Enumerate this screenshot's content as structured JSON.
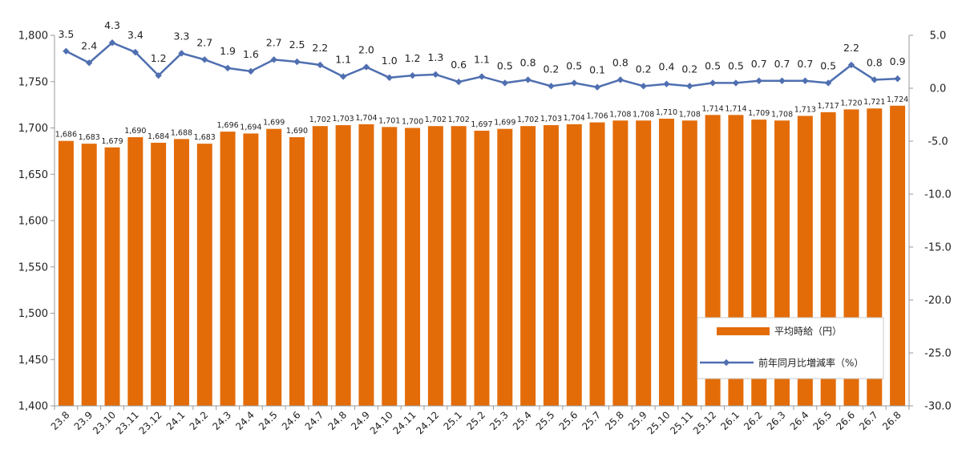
{
  "chart_data": {
    "type": "bar",
    "categories": [
      "23.8",
      "23.9",
      "23.10",
      "23.11",
      "23.12",
      "24.1",
      "24.2",
      "24.3",
      "24.4",
      "24.5",
      "24.6",
      "24.7",
      "24.8",
      "24.9",
      "24.10",
      "24.11",
      "24.12",
      "25.1",
      "25.2",
      "25.3",
      "25.4",
      "25.5",
      "25.6",
      "25.7",
      "25.8",
      "25.9",
      "25.10",
      "25.11",
      "25.12",
      "26.1",
      "26.2",
      "26.3",
      "26.4",
      "26.5",
      "26.6",
      "26.7",
      "26.8"
    ],
    "series": [
      {
        "name": "平均時給（円）",
        "type": "bar",
        "axis": "left",
        "color": "#E36C09",
        "values": [
          1686,
          1683,
          1679,
          1690,
          1684,
          1688,
          1683,
          1696,
          1694,
          1699,
          1690,
          1702,
          1703,
          1704,
          1701,
          1700,
          1702,
          1702,
          1697,
          1699,
          1702,
          1703,
          1704,
          1706,
          1708,
          1708,
          1710,
          1708,
          1714,
          1714,
          1709,
          1708,
          1713,
          1717,
          1720,
          1721,
          1724
        ],
        "labels": [
          "1,686",
          "1,683",
          "1,679",
          "1,690",
          "1,684",
          "1,688",
          "1,683",
          "1,696",
          "1,694",
          "1,699",
          "1,690",
          "1,702",
          "1,703",
          "1,704",
          "1,701",
          "1,700",
          "1,702",
          "1,702",
          "1,697",
          "1,699",
          "1,702",
          "1,703",
          "1,704",
          "1,706",
          "1,708",
          "1,708",
          "1,710",
          "1,708",
          "1,714",
          "1,714",
          "1,709",
          "1,708",
          "1,713",
          "1,717",
          "1,720",
          "1,721",
          "1,724"
        ]
      },
      {
        "name": "前年同月比増減率（%）",
        "type": "line",
        "axis": "right",
        "color": "#4F6FB0",
        "values": [
          3.5,
          2.4,
          4.3,
          3.4,
          1.2,
          3.3,
          2.7,
          1.9,
          1.6,
          2.7,
          2.5,
          2.2,
          1.1,
          2.0,
          1.0,
          1.2,
          1.3,
          0.6,
          1.1,
          0.5,
          0.8,
          0.2,
          0.5,
          0.1,
          0.8,
          0.2,
          0.4,
          0.2,
          0.5,
          0.5,
          0.7,
          0.7,
          0.7,
          0.5,
          2.2,
          0.8,
          0.9
        ],
        "labels": [
          "3.5",
          "2.4",
          "4.3",
          "3.4",
          "1.2",
          "3.3",
          "2.7",
          "1.9",
          "1.6",
          "2.7",
          "2.5",
          "2.2",
          "1.1",
          "2.0",
          "1.0",
          "1.2",
          "1.3",
          "0.6",
          "1.1",
          "0.5",
          "0.8",
          "0.2",
          "0.5",
          "0.1",
          "0.8",
          "0.2",
          "0.4",
          "0.2",
          "0.5",
          "0.5",
          "0.7",
          "0.7",
          "0.7",
          "0.5",
          "2.2",
          "0.8",
          "0.9"
        ]
      }
    ],
    "y_left": {
      "min": 1400,
      "max": 1800,
      "ticks": [
        1400,
        1450,
        1500,
        1550,
        1600,
        1650,
        1700,
        1750,
        1800
      ],
      "tick_labels": [
        "1,400",
        "1,450",
        "1,500",
        "1,550",
        "1,600",
        "1,650",
        "1,700",
        "1,750",
        "1,800"
      ]
    },
    "y_right": {
      "min": -30,
      "max": 5,
      "ticks": [
        -30,
        -25,
        -20,
        -15,
        -10,
        -5,
        0,
        5
      ],
      "tick_labels": [
        "-30.0",
        "-25.0",
        "-20.0",
        "-15.0",
        "-10.0",
        "-5.0",
        "0.0",
        "5.0"
      ]
    },
    "title": "",
    "xlabel": "",
    "ylabel": "",
    "grid": false,
    "legend": "bottom-right, inside plot",
    "x_tick_rotation": "45 degrees counter-clockwise"
  }
}
